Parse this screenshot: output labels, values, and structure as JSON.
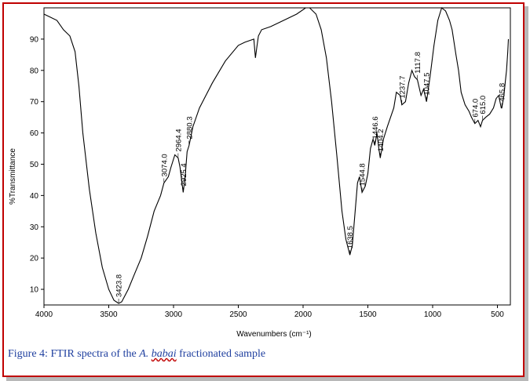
{
  "chart_data": {
    "type": "line",
    "title": "",
    "xlabel": "Wavenumbers (cm⁻¹)",
    "ylabel": "%Transmittance",
    "xlim": [
      4000,
      400
    ],
    "ylim": [
      5,
      100
    ],
    "x_reversed": true,
    "xticks": [
      4000,
      3500,
      3000,
      2500,
      2000,
      1500,
      1000,
      500
    ],
    "yticks": [
      10,
      20,
      30,
      40,
      50,
      60,
      70,
      80,
      90
    ],
    "grid": false,
    "line_color": "#000000",
    "series": [
      {
        "x": [
          4000,
          3950,
          3900,
          3850,
          3800,
          3760,
          3730,
          3700,
          3650,
          3600,
          3550,
          3500,
          3460,
          3423.8,
          3400,
          3350,
          3300,
          3250,
          3200,
          3150,
          3100,
          3074.0,
          3040,
          3020,
          2990,
          2964.4,
          2950,
          2925.4,
          2910,
          2895,
          2880.3,
          2850,
          2800,
          2700,
          2600,
          2500,
          2450,
          2380,
          2368,
          2355,
          2345,
          2320,
          2250,
          2150,
          2050,
          1980,
          1950,
          1900,
          1860,
          1820,
          1780,
          1740,
          1700,
          1670,
          1638.5,
          1620,
          1600,
          1580,
          1565,
          1544.8,
          1520,
          1500,
          1480,
          1460,
          1446.6,
          1430,
          1415,
          1404.2,
          1380,
          1350,
          1300,
          1280,
          1250,
          1237.7,
          1210,
          1185,
          1160,
          1140,
          1117.8,
          1090,
          1070,
          1047.5,
          1020,
          990,
          960,
          930,
          900,
          870,
          850,
          820,
          800,
          780,
          750,
          720,
          700,
          674.0,
          650,
          630,
          615.0,
          590,
          560,
          530,
          510,
          490,
          470,
          465.8,
          450,
          440,
          430,
          420,
          415
        ],
        "y": [
          98,
          97,
          96,
          93,
          91,
          86,
          75,
          60,
          42,
          28,
          17,
          10,
          6.5,
          5.5,
          6,
          10,
          15,
          20,
          27,
          35,
          40,
          44,
          46,
          49,
          53,
          52,
          49,
          41,
          46,
          54,
          56,
          62,
          68,
          76,
          83,
          88,
          89,
          90,
          84,
          88,
          91,
          93,
          94,
          96,
          98,
          100,
          100,
          98,
          93,
          84,
          70,
          53,
          35,
          26,
          21,
          24,
          34,
          44,
          46,
          41,
          43,
          47,
          55,
          58,
          56,
          60,
          55,
          52,
          58,
          62,
          68,
          73,
          72,
          69,
          70,
          76,
          80,
          78,
          77,
          72,
          74,
          70,
          78,
          88,
          96,
          100,
          99,
          96,
          93,
          85,
          80,
          73,
          69,
          67,
          65,
          63,
          64,
          62,
          64,
          65,
          66,
          68,
          71,
          72,
          68,
          68,
          72,
          76,
          80,
          86,
          90
        ]
      }
    ],
    "peak_labels": [
      {
        "wavenumber": 3423.8,
        "label": "3423.8"
      },
      {
        "wavenumber": 3074.0,
        "label": "3074.0"
      },
      {
        "wavenumber": 2964.4,
        "label": "2964.4"
      },
      {
        "wavenumber": 2925.4,
        "label": "2925.4"
      },
      {
        "wavenumber": 2880.3,
        "label": "2880.3"
      },
      {
        "wavenumber": 1638.5,
        "label": "1638.5"
      },
      {
        "wavenumber": 1544.8,
        "label": "1544.8"
      },
      {
        "wavenumber": 1446.6,
        "label": "1446.6"
      },
      {
        "wavenumber": 1404.2,
        "label": "1404.2"
      },
      {
        "wavenumber": 1237.7,
        "label": "1237.7"
      },
      {
        "wavenumber": 1117.8,
        "label": "1117.8"
      },
      {
        "wavenumber": 1047.5,
        "label": "1047.5"
      },
      {
        "wavenumber": 674.0,
        "label": "674.0"
      },
      {
        "wavenumber": 615.0,
        "label": "615.0"
      },
      {
        "wavenumber": 465.8,
        "label": "465.8"
      }
    ]
  },
  "caption": {
    "prefix": "Figure 4: FTIR spectra of the ",
    "species_genus": "A.",
    "species_epithet": "babai",
    "suffix": " fractionated sample"
  }
}
